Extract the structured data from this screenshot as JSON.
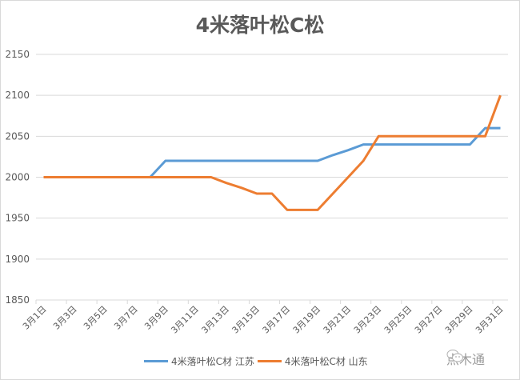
{
  "chart_data": {
    "type": "line",
    "title": "4米落叶松C松",
    "xlabel": "",
    "ylabel": "",
    "ylim": [
      1850,
      2150
    ],
    "yticks": [
      1850,
      1900,
      1950,
      2000,
      2050,
      2100,
      2150
    ],
    "grid": true,
    "legend_position": "bottom",
    "categories": [
      "3月1日",
      "3月2日",
      "3月3日",
      "3月4日",
      "3月5日",
      "3月6日",
      "3月7日",
      "3月8日",
      "3月9日",
      "3月10日",
      "3月11日",
      "3月12日",
      "3月13日",
      "3月14日",
      "3月15日",
      "3月16日",
      "3月17日",
      "3月18日",
      "3月19日",
      "3月20日",
      "3月21日",
      "3月22日",
      "3月23日",
      "3月24日",
      "3月25日",
      "3月26日",
      "3月27日",
      "3月28日",
      "3月29日",
      "3月30日",
      "3月31日"
    ],
    "xtick_labels": [
      "3月1日",
      "3月3日",
      "3月5日",
      "3月7日",
      "3月9日",
      "3月11日",
      "3月13日",
      "3月15日",
      "3月17日",
      "3月19日",
      "3月21日",
      "3月23日",
      "3月25日",
      "3月27日",
      "3月29日",
      "3月31日"
    ],
    "series": [
      {
        "name": "4米落叶松C材 江苏",
        "color": "#5b9bd5",
        "values": [
          2000,
          2000,
          2000,
          2000,
          2000,
          2000,
          2000,
          2000,
          2020,
          2020,
          2020,
          2020,
          2020,
          2020,
          2020,
          2020,
          2020,
          2020,
          2020,
          2027,
          2033,
          2040,
          2040,
          2040,
          2040,
          2040,
          2040,
          2040,
          2040,
          2060,
          2060
        ]
      },
      {
        "name": "4米落叶松C材 山东",
        "color": "#ed7d31",
        "values": [
          2000,
          2000,
          2000,
          2000,
          2000,
          2000,
          2000,
          2000,
          2000,
          2000,
          2000,
          2000,
          1993,
          1987,
          1980,
          1980,
          1960,
          1960,
          1960,
          1980,
          2000,
          2020,
          2050,
          2050,
          2050,
          2050,
          2050,
          2050,
          2050,
          2050,
          2100
        ]
      }
    ]
  },
  "watermark": {
    "icon": "wechat-icon",
    "text": "点木通"
  }
}
